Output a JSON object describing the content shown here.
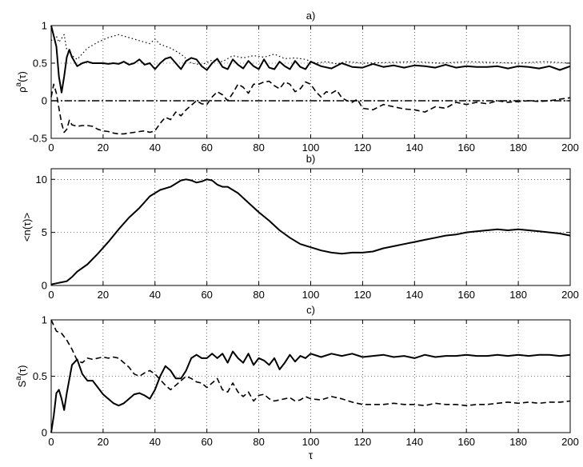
{
  "chart_data": [
    {
      "type": "line",
      "title": "a)",
      "xlabel": "",
      "ylabel": "ρ",
      "ylabel_sup": "a",
      "ylabel_tail": "(τ)",
      "xlim": [
        0,
        200
      ],
      "ylim": [
        -0.5,
        1
      ],
      "xticks": [
        0,
        20,
        40,
        60,
        80,
        100,
        120,
        140,
        160,
        180,
        200
      ],
      "xtick_labels": [
        "0",
        "20",
        "40",
        "60",
        "80",
        "100",
        "120",
        "140",
        "160",
        "180",
        "200"
      ],
      "yticks": [
        -0.5,
        0,
        0.5,
        1
      ],
      "ytick_labels": [
        "-0.5",
        "0",
        "0.5",
        "1"
      ],
      "grid": true,
      "series": [
        {
          "style": "solid",
          "x": [
            0,
            2,
            3,
            4,
            5,
            6,
            7,
            8,
            10,
            12,
            14,
            16,
            18,
            20,
            22,
            24,
            26,
            28,
            30,
            32,
            34,
            36,
            38,
            40,
            42,
            44,
            46,
            48,
            50,
            52,
            54,
            56,
            58,
            60,
            62,
            64,
            66,
            68,
            70,
            72,
            74,
            76,
            78,
            80,
            82,
            84,
            86,
            88,
            90,
            92,
            94,
            96,
            98,
            100,
            104,
            108,
            112,
            116,
            120,
            124,
            128,
            132,
            136,
            140,
            144,
            148,
            152,
            156,
            160,
            164,
            168,
            172,
            176,
            180,
            184,
            188,
            192,
            196,
            200
          ],
          "y": [
            1.0,
            0.72,
            0.32,
            0.11,
            0.32,
            0.58,
            0.68,
            0.58,
            0.46,
            0.5,
            0.52,
            0.5,
            0.5,
            0.5,
            0.49,
            0.5,
            0.49,
            0.52,
            0.48,
            0.5,
            0.55,
            0.48,
            0.5,
            0.42,
            0.5,
            0.56,
            0.58,
            0.5,
            0.42,
            0.53,
            0.57,
            0.55,
            0.46,
            0.41,
            0.5,
            0.56,
            0.45,
            0.42,
            0.55,
            0.48,
            0.43,
            0.53,
            0.46,
            0.42,
            0.55,
            0.44,
            0.42,
            0.52,
            0.46,
            0.42,
            0.53,
            0.45,
            0.42,
            0.52,
            0.46,
            0.43,
            0.5,
            0.45,
            0.44,
            0.49,
            0.45,
            0.47,
            0.44,
            0.47,
            0.46,
            0.44,
            0.48,
            0.44,
            0.46,
            0.45,
            0.45,
            0.46,
            0.43,
            0.46,
            0.45,
            0.43,
            0.46,
            0.41,
            0.46
          ]
        },
        {
          "style": "dotted",
          "x": [
            0,
            2,
            3,
            4,
            5,
            6,
            8,
            10,
            14,
            18,
            22,
            26,
            30,
            34,
            38,
            40,
            42,
            46,
            50,
            54,
            58,
            62,
            66,
            70,
            74,
            78,
            82,
            86,
            90,
            94,
            98,
            102,
            106,
            110,
            114,
            120,
            130,
            140,
            150,
            160,
            170,
            180,
            190,
            200
          ],
          "y": [
            0.8,
            0.86,
            0.78,
            0.83,
            0.88,
            0.68,
            0.6,
            0.55,
            0.7,
            0.78,
            0.84,
            0.88,
            0.84,
            0.8,
            0.76,
            0.82,
            0.75,
            0.7,
            0.62,
            0.5,
            0.48,
            0.54,
            0.52,
            0.6,
            0.57,
            0.6,
            0.58,
            0.62,
            0.56,
            0.57,
            0.55,
            0.5,
            0.52,
            0.49,
            0.52,
            0.5,
            0.51,
            0.52,
            0.5,
            0.52,
            0.51,
            0.5,
            0.52,
            0.5
          ]
        },
        {
          "style": "dashed",
          "x": [
            0,
            1,
            2,
            3,
            4,
            5,
            6,
            7,
            8,
            10,
            12,
            14,
            16,
            18,
            20,
            22,
            24,
            26,
            28,
            30,
            32,
            34,
            36,
            38,
            40,
            42,
            44,
            46,
            48,
            50,
            52,
            54,
            56,
            58,
            60,
            62,
            64,
            66,
            68,
            70,
            72,
            74,
            76,
            78,
            80,
            82,
            84,
            86,
            88,
            90,
            92,
            94,
            96,
            98,
            100,
            102,
            104,
            106,
            108,
            110,
            112,
            114,
            116,
            118,
            120,
            124,
            128,
            132,
            136,
            140,
            144,
            148,
            152,
            156,
            160,
            164,
            168,
            172,
            176,
            180,
            184,
            188,
            192,
            196,
            200
          ],
          "y": [
            0.05,
            0.22,
            0.1,
            -0.1,
            -0.3,
            -0.42,
            -0.38,
            -0.26,
            -0.32,
            -0.34,
            -0.33,
            -0.33,
            -0.34,
            -0.38,
            -0.4,
            -0.41,
            -0.43,
            -0.44,
            -0.44,
            -0.43,
            -0.42,
            -0.41,
            -0.4,
            -0.42,
            -0.4,
            -0.3,
            -0.22,
            -0.25,
            -0.15,
            -0.2,
            -0.12,
            -0.06,
            0.0,
            -0.04,
            -0.05,
            0.05,
            0.12,
            0.08,
            0.0,
            0.1,
            0.22,
            0.18,
            0.1,
            0.22,
            0.22,
            0.25,
            0.26,
            0.2,
            0.16,
            0.25,
            0.22,
            0.12,
            0.16,
            0.25,
            0.22,
            0.12,
            0.05,
            0.12,
            0.1,
            0.14,
            0.04,
            0.0,
            -0.02,
            0.02,
            -0.1,
            -0.12,
            -0.05,
            -0.08,
            -0.11,
            -0.12,
            -0.15,
            -0.08,
            -0.1,
            -0.02,
            -0.05,
            -0.02,
            -0.04,
            0.0,
            -0.02,
            -0.01,
            0.0,
            -0.01,
            0.0,
            0.02,
            0.04
          ]
        },
        {
          "style": "dashdot",
          "x": [
            0,
            200
          ],
          "y": [
            0,
            0
          ]
        }
      ]
    },
    {
      "type": "line",
      "title": "b)",
      "xlabel": "",
      "ylabel": "<n(τ)>",
      "xlim": [
        0,
        200
      ],
      "ylim": [
        0,
        11
      ],
      "xticks": [
        0,
        20,
        40,
        60,
        80,
        100,
        120,
        140,
        160,
        180,
        200
      ],
      "xtick_labels": [
        "0",
        "20",
        "40",
        "60",
        "80",
        "100",
        "120",
        "140",
        "160",
        "180",
        "200"
      ],
      "yticks": [
        0,
        5,
        10
      ],
      "ytick_labels": [
        "0",
        "5",
        "10"
      ],
      "grid": true,
      "series": [
        {
          "style": "solid",
          "x": [
            0,
            2,
            4,
            6,
            8,
            10,
            14,
            18,
            22,
            26,
            30,
            34,
            38,
            42,
            46,
            48,
            50,
            52,
            54,
            56,
            58,
            60,
            62,
            64,
            66,
            68,
            72,
            76,
            80,
            84,
            88,
            92,
            96,
            100,
            104,
            108,
            112,
            116,
            120,
            124,
            128,
            132,
            136,
            140,
            144,
            148,
            152,
            156,
            160,
            164,
            168,
            172,
            176,
            180,
            184,
            188,
            192,
            196,
            200
          ],
          "y": [
            0.1,
            0.2,
            0.3,
            0.4,
            0.8,
            1.3,
            2.0,
            3.0,
            4.1,
            5.3,
            6.4,
            7.3,
            8.4,
            9.0,
            9.3,
            9.6,
            9.9,
            10.0,
            9.9,
            9.7,
            9.8,
            10.0,
            9.9,
            9.5,
            9.3,
            9.3,
            8.7,
            7.8,
            6.9,
            6.1,
            5.2,
            4.5,
            3.9,
            3.6,
            3.3,
            3.1,
            3.0,
            3.1,
            3.1,
            3.2,
            3.5,
            3.7,
            3.9,
            4.1,
            4.3,
            4.5,
            4.7,
            4.8,
            5.0,
            5.1,
            5.2,
            5.3,
            5.2,
            5.3,
            5.2,
            5.1,
            5.0,
            4.9,
            4.7
          ]
        }
      ]
    },
    {
      "type": "line",
      "title": "c)",
      "xlabel": "τ",
      "ylabel": "S",
      "ylabel_sup": "a",
      "ylabel_tail": "(τ)",
      "xlim": [
        0,
        200
      ],
      "ylim": [
        0,
        1
      ],
      "xticks": [
        0,
        20,
        40,
        60,
        80,
        100,
        120,
        140,
        160,
        180,
        200
      ],
      "xtick_labels": [
        "0",
        "20",
        "40",
        "60",
        "80",
        "100",
        "120",
        "140",
        "160",
        "180",
        "200"
      ],
      "yticks": [
        0,
        0.5,
        1
      ],
      "ytick_labels": [
        "0",
        "0.5",
        "1"
      ],
      "grid": true,
      "series": [
        {
          "style": "solid",
          "x": [
            0,
            1,
            2,
            3,
            4,
            5,
            6,
            8,
            10,
            12,
            14,
            16,
            18,
            20,
            22,
            24,
            26,
            28,
            30,
            32,
            34,
            36,
            38,
            40,
            42,
            44,
            46,
            48,
            50,
            52,
            54,
            56,
            58,
            60,
            62,
            64,
            66,
            68,
            70,
            72,
            74,
            76,
            78,
            80,
            82,
            84,
            86,
            88,
            90,
            92,
            94,
            96,
            98,
            100,
            104,
            108,
            112,
            116,
            120,
            124,
            128,
            132,
            136,
            140,
            144,
            148,
            152,
            156,
            160,
            164,
            168,
            172,
            176,
            180,
            184,
            188,
            192,
            196,
            200
          ],
          "y": [
            0.0,
            0.15,
            0.35,
            0.38,
            0.3,
            0.2,
            0.35,
            0.6,
            0.65,
            0.52,
            0.46,
            0.46,
            0.4,
            0.34,
            0.3,
            0.26,
            0.24,
            0.26,
            0.3,
            0.34,
            0.35,
            0.33,
            0.3,
            0.38,
            0.5,
            0.59,
            0.55,
            0.48,
            0.48,
            0.55,
            0.66,
            0.69,
            0.66,
            0.66,
            0.7,
            0.66,
            0.7,
            0.62,
            0.72,
            0.66,
            0.62,
            0.7,
            0.6,
            0.66,
            0.64,
            0.6,
            0.66,
            0.56,
            0.62,
            0.69,
            0.63,
            0.68,
            0.66,
            0.7,
            0.67,
            0.7,
            0.68,
            0.7,
            0.67,
            0.68,
            0.69,
            0.67,
            0.68,
            0.66,
            0.69,
            0.67,
            0.68,
            0.68,
            0.69,
            0.68,
            0.68,
            0.69,
            0.68,
            0.69,
            0.68,
            0.69,
            0.69,
            0.68,
            0.69
          ]
        },
        {
          "style": "dashed",
          "x": [
            0,
            2,
            4,
            6,
            8,
            10,
            12,
            14,
            16,
            18,
            20,
            22,
            24,
            26,
            28,
            30,
            32,
            34,
            36,
            38,
            40,
            42,
            44,
            46,
            48,
            50,
            52,
            54,
            56,
            58,
            60,
            62,
            64,
            66,
            68,
            70,
            72,
            74,
            76,
            78,
            80,
            82,
            84,
            86,
            88,
            90,
            92,
            94,
            96,
            98,
            100,
            104,
            108,
            112,
            116,
            120,
            124,
            128,
            132,
            136,
            140,
            144,
            148,
            152,
            156,
            160,
            164,
            168,
            172,
            176,
            180,
            184,
            188,
            192,
            196,
            200
          ],
          "y": [
            1.0,
            0.9,
            0.88,
            0.82,
            0.74,
            0.64,
            0.62,
            0.66,
            0.65,
            0.66,
            0.67,
            0.66,
            0.67,
            0.66,
            0.62,
            0.58,
            0.52,
            0.5,
            0.53,
            0.55,
            0.52,
            0.47,
            0.42,
            0.38,
            0.42,
            0.46,
            0.5,
            0.48,
            0.45,
            0.44,
            0.4,
            0.44,
            0.48,
            0.38,
            0.36,
            0.44,
            0.36,
            0.32,
            0.36,
            0.28,
            0.33,
            0.34,
            0.3,
            0.28,
            0.29,
            0.3,
            0.31,
            0.28,
            0.29,
            0.32,
            0.3,
            0.29,
            0.32,
            0.3,
            0.27,
            0.25,
            0.25,
            0.25,
            0.26,
            0.25,
            0.25,
            0.24,
            0.26,
            0.25,
            0.25,
            0.24,
            0.25,
            0.25,
            0.26,
            0.27,
            0.26,
            0.27,
            0.26,
            0.27,
            0.27,
            0.28
          ]
        }
      ]
    }
  ]
}
